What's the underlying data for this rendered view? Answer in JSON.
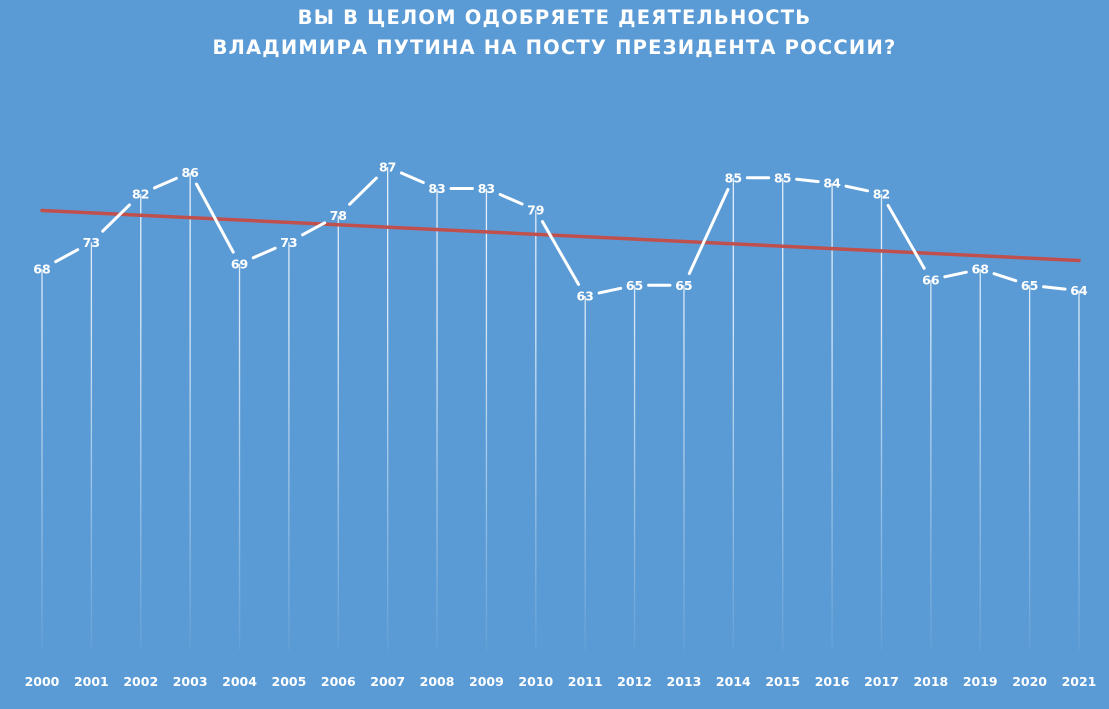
{
  "chart_data": {
    "type": "line",
    "title": {
      "line1": "ВЫ В ЦЕЛОМ ОДОБРЯЕТЕ ДЕЯТЕЛЬНОСТЬ",
      "line2": "ВЛАДИМИРА ПУТИНА НА ПОСТУ ПРЕЗИДЕНТА РОССИИ?"
    },
    "xlabel": "",
    "ylabel": "",
    "categories": [
      "2000",
      "2001",
      "2002",
      "2003",
      "2004",
      "2005",
      "2006",
      "2007",
      "2008",
      "2009",
      "2010",
      "2011",
      "2012",
      "2013",
      "2014",
      "2015",
      "2016",
      "2017",
      "2018",
      "2019",
      "2020",
      "2021"
    ],
    "values": [
      68,
      73,
      82,
      86,
      69,
      73,
      78,
      87,
      83,
      83,
      79,
      63,
      65,
      65,
      85,
      85,
      84,
      82,
      66,
      68,
      65,
      64
    ],
    "trendline": {
      "type": "linear",
      "start_value": 78.9,
      "end_value": 69.6
    },
    "ylim": [
      0,
      100
    ],
    "grid": false,
    "legend": "none",
    "colors": {
      "background": "#5b9bd5",
      "line": "#ffffff",
      "drop_lines": "#ffffff",
      "trendline": "#c0504d",
      "text": "#ffffff"
    }
  }
}
